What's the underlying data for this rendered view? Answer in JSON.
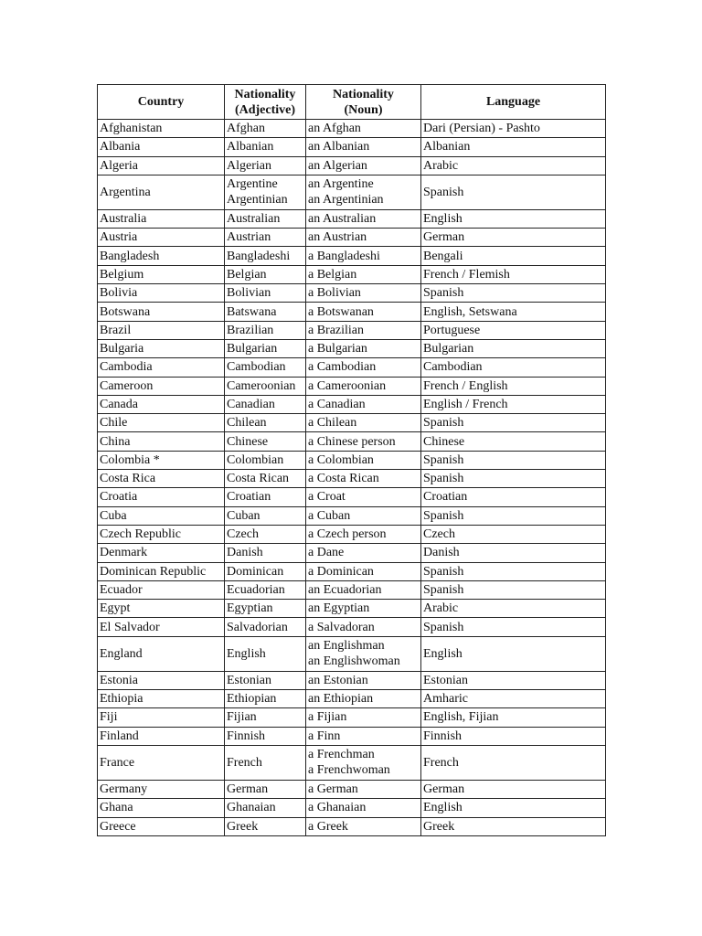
{
  "headers": {
    "country": "Country",
    "adjective": [
      "Nationality",
      "(Adjective)"
    ],
    "noun": [
      "Nationality",
      "(Noun)"
    ],
    "language": "Language"
  },
  "rows": [
    {
      "country": "Afghanistan",
      "adjective": [
        "Afghan"
      ],
      "noun": [
        "an Afghan"
      ],
      "language": "Dari (Persian) - Pashto"
    },
    {
      "country": "Albania",
      "adjective": [
        "Albanian"
      ],
      "noun": [
        "an Albanian"
      ],
      "language": "Albanian"
    },
    {
      "country": "Algeria",
      "adjective": [
        "Algerian"
      ],
      "noun": [
        "an Algerian"
      ],
      "language": "Arabic"
    },
    {
      "country": "Argentina",
      "adjective": [
        "Argentine",
        "Argentinian"
      ],
      "noun": [
        "an Argentine",
        "an Argentinian"
      ],
      "language": "Spanish"
    },
    {
      "country": "Australia",
      "adjective": [
        "Australian"
      ],
      "noun": [
        "an Australian"
      ],
      "language": "English"
    },
    {
      "country": "Austria",
      "adjective": [
        "Austrian"
      ],
      "noun": [
        "an Austrian"
      ],
      "language": "German"
    },
    {
      "country": "Bangladesh",
      "adjective": [
        "Bangladeshi"
      ],
      "noun": [
        "a Bangladeshi"
      ],
      "language": "Bengali"
    },
    {
      "country": "Belgium",
      "adjective": [
        "Belgian"
      ],
      "noun": [
        "a Belgian"
      ],
      "language": "French / Flemish"
    },
    {
      "country": "Bolivia",
      "adjective": [
        "Bolivian"
      ],
      "noun": [
        "a Bolivian"
      ],
      "language": "Spanish"
    },
    {
      "country": "Botswana",
      "adjective": [
        "Batswana"
      ],
      "noun": [
        "a Botswanan"
      ],
      "language": "English, Setswana"
    },
    {
      "country": "Brazil",
      "adjective": [
        "Brazilian"
      ],
      "noun": [
        "a Brazilian"
      ],
      "language": "Portuguese"
    },
    {
      "country": "Bulgaria",
      "adjective": [
        "Bulgarian"
      ],
      "noun": [
        "a Bulgarian"
      ],
      "language": "Bulgarian"
    },
    {
      "country": "Cambodia",
      "adjective": [
        "Cambodian"
      ],
      "noun": [
        "a Cambodian"
      ],
      "language": "Cambodian"
    },
    {
      "country": "Cameroon",
      "adjective": [
        "Cameroonian"
      ],
      "noun": [
        "a Cameroonian"
      ],
      "language": "French / English"
    },
    {
      "country": "Canada",
      "adjective": [
        "Canadian"
      ],
      "noun": [
        "a Canadian"
      ],
      "language": "English / French"
    },
    {
      "country": "Chile",
      "adjective": [
        "Chilean"
      ],
      "noun": [
        "a Chilean"
      ],
      "language": "Spanish"
    },
    {
      "country": "China",
      "adjective": [
        "Chinese"
      ],
      "noun": [
        "a Chinese person"
      ],
      "language": "Chinese"
    },
    {
      "country": "Colombia *",
      "adjective": [
        "Colombian"
      ],
      "noun": [
        "a Colombian"
      ],
      "language": "Spanish"
    },
    {
      "country": "Costa Rica",
      "adjective": [
        "Costa Rican"
      ],
      "noun": [
        "a Costa Rican"
      ],
      "language": "Spanish"
    },
    {
      "country": "Croatia",
      "adjective": [
        "Croatian"
      ],
      "noun": [
        "a Croat"
      ],
      "language": "Croatian"
    },
    {
      "country": "Cuba",
      "adjective": [
        "Cuban"
      ],
      "noun": [
        "a Cuban"
      ],
      "language": "Spanish"
    },
    {
      "country": "Czech Republic",
      "adjective": [
        "Czech"
      ],
      "noun": [
        "a Czech person"
      ],
      "language": "Czech"
    },
    {
      "country": "Denmark",
      "adjective": [
        "Danish"
      ],
      "noun": [
        "a Dane"
      ],
      "language": "Danish"
    },
    {
      "country": "Dominican Republic",
      "adjective": [
        "Dominican"
      ],
      "noun": [
        "a Dominican"
      ],
      "language": "Spanish"
    },
    {
      "country": "Ecuador",
      "adjective": [
        "Ecuadorian"
      ],
      "noun": [
        "an Ecuadorian"
      ],
      "language": "Spanish"
    },
    {
      "country": "Egypt",
      "adjective": [
        "Egyptian"
      ],
      "noun": [
        "an Egyptian"
      ],
      "language": "Arabic"
    },
    {
      "country": "El Salvador",
      "adjective": [
        "Salvadorian"
      ],
      "noun": [
        "a Salvadoran"
      ],
      "language": "Spanish"
    },
    {
      "country": "England",
      "adjective": [
        "English"
      ],
      "noun": [
        "an Englishman",
        "an Englishwoman"
      ],
      "language": "English"
    },
    {
      "country": "Estonia",
      "adjective": [
        "Estonian"
      ],
      "noun": [
        "an Estonian"
      ],
      "language": "Estonian"
    },
    {
      "country": "Ethiopia",
      "adjective": [
        "Ethiopian"
      ],
      "noun": [
        "an Ethiopian"
      ],
      "language": "Amharic"
    },
    {
      "country": "Fiji",
      "adjective": [
        "Fijian"
      ],
      "noun": [
        "a Fijian"
      ],
      "language": "English, Fijian"
    },
    {
      "country": "Finland",
      "adjective": [
        "Finnish"
      ],
      "noun": [
        "a Finn"
      ],
      "language": "Finnish"
    },
    {
      "country": "France",
      "adjective": [
        "French"
      ],
      "noun": [
        "a Frenchman",
        "a Frenchwoman"
      ],
      "language": "French"
    },
    {
      "country": "Germany",
      "adjective": [
        "German"
      ],
      "noun": [
        "a German"
      ],
      "language": "German"
    },
    {
      "country": "Ghana",
      "adjective": [
        "Ghanaian"
      ],
      "noun": [
        "a Ghanaian"
      ],
      "language": "English"
    },
    {
      "country": "Greece",
      "adjective": [
        "Greek"
      ],
      "noun": [
        "a Greek"
      ],
      "language": "Greek"
    }
  ]
}
